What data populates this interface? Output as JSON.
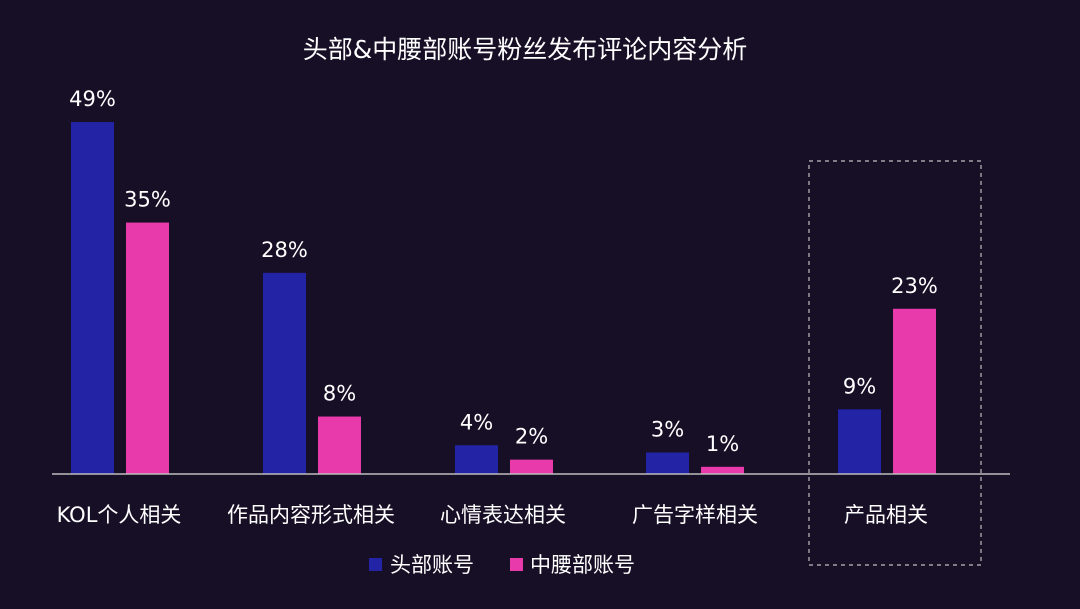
{
  "chart_data": {
    "type": "bar",
    "title": "头部&中腰部账号粉丝发布评论内容分析",
    "categories": [
      "KOL个人相关",
      "作品内容形式相关",
      "心情表达相关",
      "广告字样相关",
      "产品相关"
    ],
    "series": [
      {
        "name": "头部账号",
        "values": [
          49,
          28,
          4,
          3,
          9
        ],
        "labels": [
          "49%",
          "28%",
          "4%",
          "3%",
          "9%"
        ],
        "color": "#2323a6"
      },
      {
        "name": "中腰部账号",
        "values": [
          35,
          8,
          2,
          1,
          23
        ],
        "labels": [
          "35%",
          "8%",
          "2%",
          "1%",
          "23%"
        ],
        "color": "#e93aab"
      }
    ],
    "ylim": [
      0,
      50
    ],
    "unit": "%",
    "grid": false,
    "legend_position": "bottom-center",
    "highlighted_category": "产品相关",
    "colors": {
      "background": "#170f26",
      "axis": "#bdbdbd",
      "highlight_box": "#bdbdbd",
      "text": "#ffffff"
    }
  }
}
